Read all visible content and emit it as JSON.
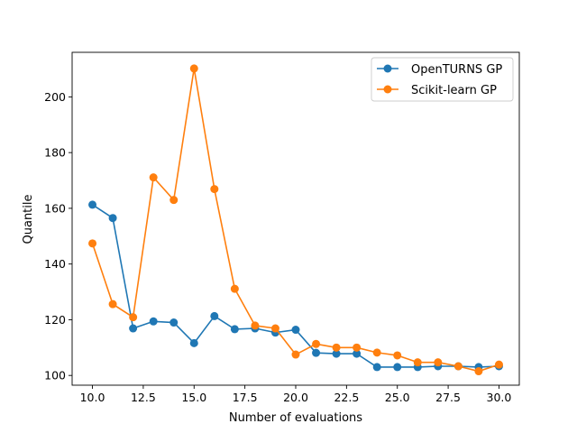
{
  "chart_data": {
    "type": "line",
    "title": "",
    "xlabel": "Number of evaluations",
    "ylabel": "Quantile",
    "xlim": [
      9.0,
      31.0
    ],
    "ylim": [
      96.5,
      216.0
    ],
    "xticks": [
      "10.0",
      "12.5",
      "15.0",
      "17.5",
      "20.0",
      "22.5",
      "25.0",
      "27.5",
      "30.0"
    ],
    "yticks": [
      "100",
      "120",
      "140",
      "160",
      "180",
      "200"
    ],
    "grid": false,
    "legend_position": "top-right",
    "x": [
      10,
      11,
      12,
      13,
      14,
      15,
      16,
      17,
      18,
      19,
      20,
      21,
      22,
      23,
      24,
      25,
      26,
      27,
      28,
      29,
      30
    ],
    "series": [
      {
        "name": "OpenTURNS GP",
        "color": "#1f77b4",
        "marker": "circle",
        "values": [
          161.3,
          156.5,
          116.9,
          119.4,
          119.0,
          111.6,
          121.3,
          116.6,
          116.9,
          115.4,
          116.4,
          108.1,
          107.8,
          107.8,
          103.0,
          103.0,
          103.0,
          103.3,
          103.3,
          103.0,
          103.3
        ]
      },
      {
        "name": "Scikit-learn GP",
        "color": "#ff7f0e",
        "marker": "circle",
        "values": [
          147.4,
          125.6,
          120.9,
          171.1,
          163.0,
          210.2,
          166.9,
          131.1,
          117.9,
          116.9,
          107.5,
          111.3,
          110.0,
          110.0,
          108.2,
          107.2,
          104.7,
          104.7,
          103.3,
          101.5,
          103.9
        ]
      }
    ]
  }
}
